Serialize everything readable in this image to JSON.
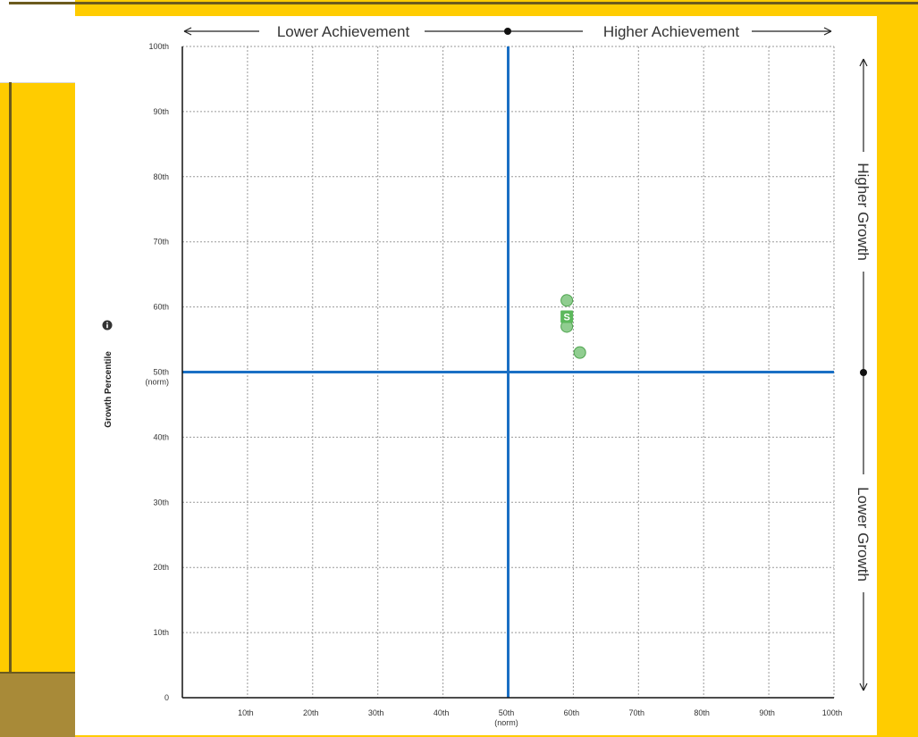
{
  "chart_data": {
    "type": "scatter",
    "title": "",
    "xlabel": "",
    "ylabel": "Growth Percentile",
    "xlim": [
      0,
      100
    ],
    "ylim": [
      0,
      100
    ],
    "x_ticks": [
      {
        "v": 10,
        "label": "10th"
      },
      {
        "v": 20,
        "label": "20th"
      },
      {
        "v": 30,
        "label": "30th"
      },
      {
        "v": 40,
        "label": "40th"
      },
      {
        "v": 50,
        "label": "50th",
        "sub": "(norm)"
      },
      {
        "v": 60,
        "label": "60th"
      },
      {
        "v": 70,
        "label": "70th"
      },
      {
        "v": 80,
        "label": "80th"
      },
      {
        "v": 90,
        "label": "90th"
      },
      {
        "v": 100,
        "label": "100th"
      }
    ],
    "y_ticks": [
      {
        "v": 0,
        "label": "0"
      },
      {
        "v": 10,
        "label": "10th"
      },
      {
        "v": 20,
        "label": "20th"
      },
      {
        "v": 30,
        "label": "30th"
      },
      {
        "v": 40,
        "label": "40th"
      },
      {
        "v": 50,
        "label": "50th",
        "sub": "(norm)"
      },
      {
        "v": 60,
        "label": "60th"
      },
      {
        "v": 70,
        "label": "70th"
      },
      {
        "v": 80,
        "label": "80th"
      },
      {
        "v": 90,
        "label": "90th"
      },
      {
        "v": 100,
        "label": "100th"
      }
    ],
    "grid": true,
    "norm_lines": {
      "x": 50,
      "y": 50,
      "color": "#1a6fc4"
    },
    "points": [
      {
        "x": 59,
        "y": 61
      },
      {
        "x": 59,
        "y": 57
      },
      {
        "x": 61,
        "y": 53
      }
    ],
    "marker": {
      "x": 59,
      "y": 58.5,
      "label": "S"
    },
    "point_color": "#7cc47c",
    "quadrant_labels": {
      "lower_achievement": "Lower Achievement",
      "higher_achievement": "Higher Achievement",
      "higher_growth": "Higher Growth",
      "lower_growth": "Lower Growth"
    },
    "info_icon": "info-circle-icon"
  }
}
